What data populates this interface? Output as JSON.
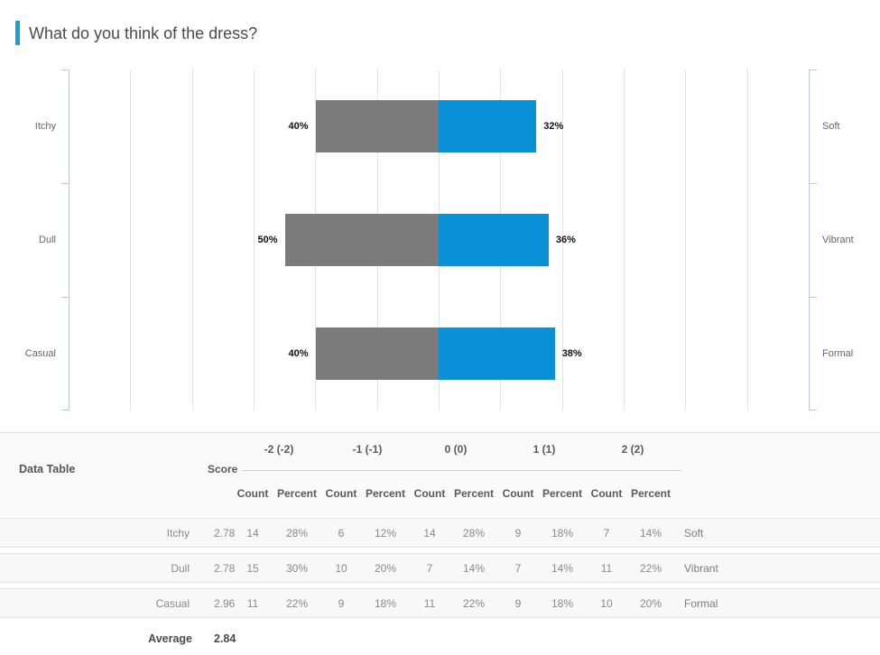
{
  "title": "What do you think of the dress?",
  "colors": {
    "accent": "#1e9ed9",
    "bar_negative": "#7b7b7b",
    "bar_positive": "#0a90d6",
    "axis": "#b7c8d7",
    "gridline": "#e3e3e3"
  },
  "chart_data": {
    "type": "bar",
    "subtype": "diverging-horizontal",
    "title": "What do you think of the dress?",
    "legend_position": "none",
    "grid": true,
    "axis": {
      "center_value": 0,
      "gridline_step_pct": 20,
      "half_range_pct": 120
    },
    "categories": [
      "Itchy / Soft",
      "Dull / Vibrant",
      "Casual / Formal"
    ],
    "series": [
      {
        "name": "negative",
        "color": "#7b7b7b",
        "values": [
          40,
          50,
          40
        ]
      },
      {
        "name": "positive",
        "color": "#0a90d6",
        "values": [
          32,
          36,
          38
        ]
      }
    ],
    "rows": [
      {
        "left_label": "Itchy",
        "right_label": "Soft",
        "left_value": 40,
        "left_text": "40%",
        "right_value": 32,
        "right_text": "32%"
      },
      {
        "left_label": "Dull",
        "right_label": "Vibrant",
        "left_value": 50,
        "left_text": "50%",
        "right_value": 36,
        "right_text": "36%"
      },
      {
        "left_label": "Casual",
        "right_label": "Formal",
        "left_value": 40,
        "left_text": "40%",
        "right_value": 38,
        "right_text": "38%"
      }
    ]
  },
  "table": {
    "title": "Data Table",
    "score_header": "Score",
    "group_headers": [
      "-2 (-2)",
      "-1 (-1)",
      "0 (0)",
      "1 (1)",
      "2 (2)"
    ],
    "sub_headers": [
      "Count",
      "Percent"
    ],
    "rows": [
      {
        "label": "Itchy",
        "score": "2.78",
        "cells": [
          "14",
          "28%",
          "6",
          "12%",
          "14",
          "28%",
          "9",
          "18%",
          "7",
          "14%"
        ],
        "right_label": "Soft"
      },
      {
        "label": "Dull",
        "score": "2.78",
        "cells": [
          "15",
          "30%",
          "10",
          "20%",
          "7",
          "14%",
          "7",
          "14%",
          "11",
          "22%"
        ],
        "right_label": "Vibrant"
      },
      {
        "label": "Casual",
        "score": "2.96",
        "cells": [
          "11",
          "22%",
          "9",
          "18%",
          "11",
          "22%",
          "9",
          "18%",
          "10",
          "20%"
        ],
        "right_label": "Formal"
      }
    ],
    "average": {
      "label": "Average",
      "value": "2.84"
    }
  }
}
